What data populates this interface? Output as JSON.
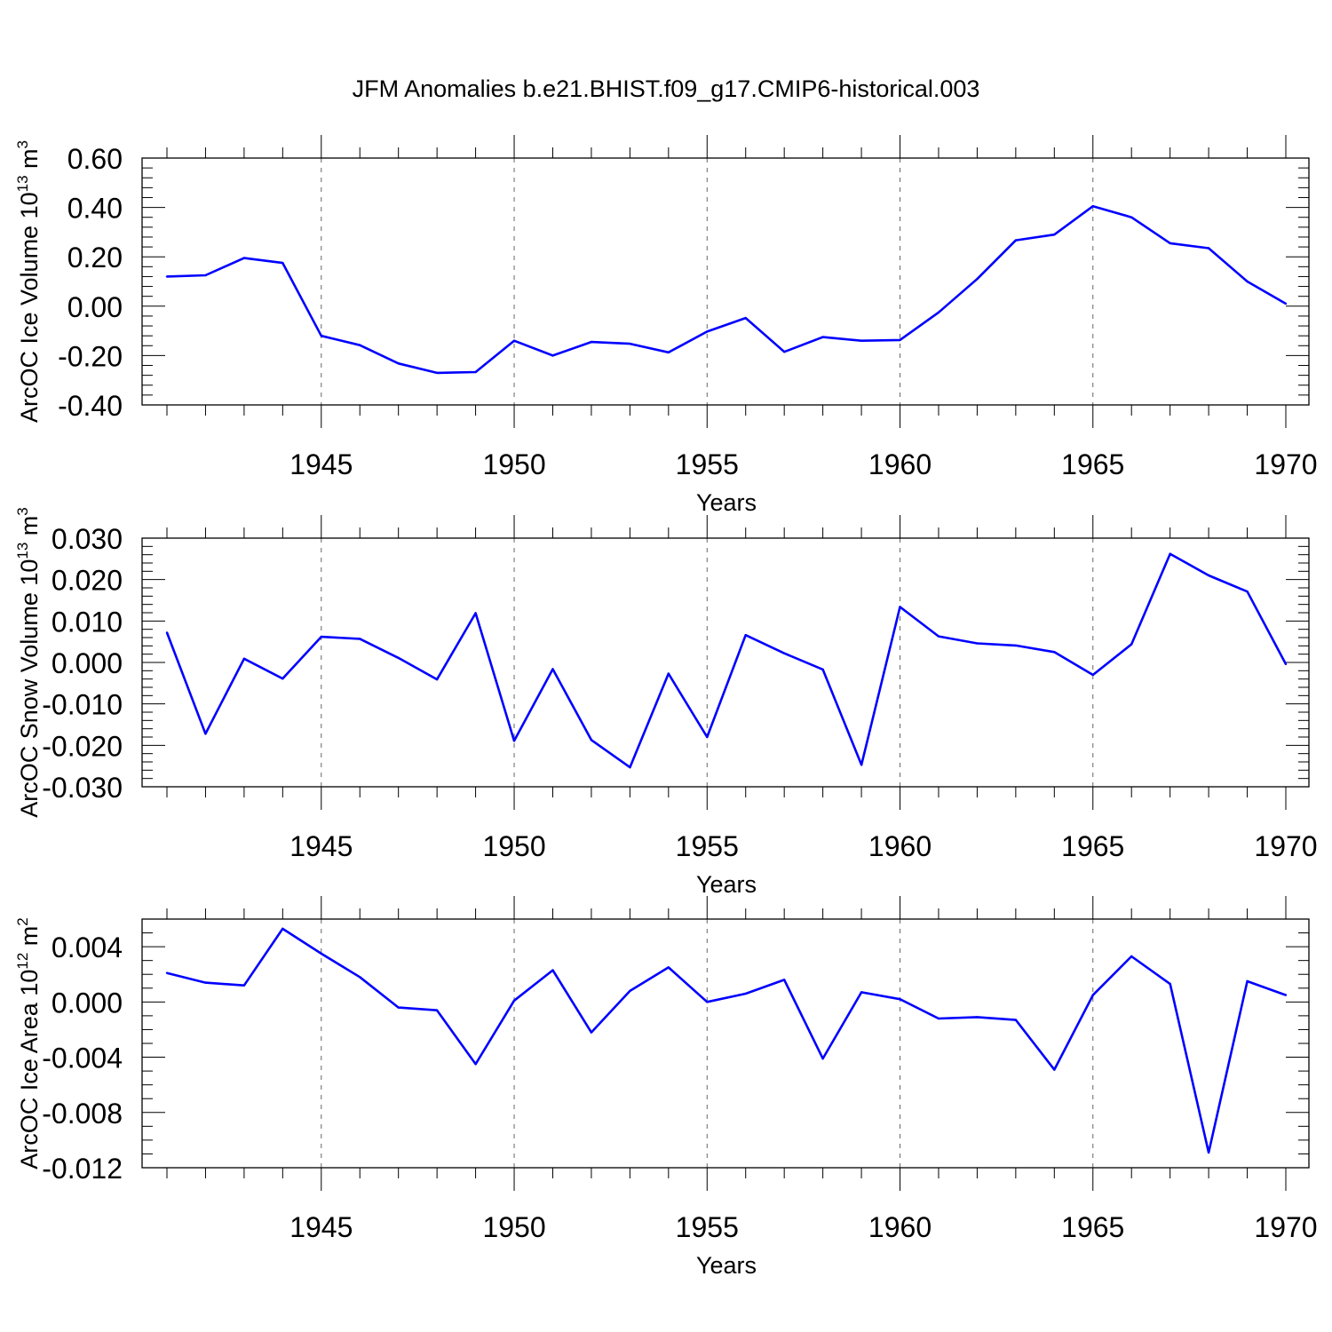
{
  "figure_title": "JFM Anomalies b.e21.BHIST.f09_g17.CMIP6-historical.003",
  "line_color": "#0000ff",
  "chart_data": [
    {
      "type": "line",
      "title": "JFM Anomalies b.e21.BHIST.f09_g17.CMIP6-historical.003",
      "xlabel": "Years",
      "ylabel_main": "ArcOC Ice Volume 10",
      "ylabel_exp": "13",
      "ylabel_unit": " m",
      "ylabel_unit_exp": "3",
      "xlim": [
        1941,
        1970
      ],
      "ylim": [
        -0.4,
        0.6
      ],
      "yticks": [
        -0.4,
        -0.2,
        0.0,
        0.2,
        0.4,
        0.6
      ],
      "ytick_labels": [
        "-0.40",
        "-0.20",
        "0.00",
        "0.20",
        "0.40",
        "0.60"
      ],
      "xticks": [
        1945,
        1950,
        1955,
        1960,
        1965,
        1970
      ],
      "xtick_labels": [
        "1945",
        "1950",
        "1955",
        "1960",
        "1965",
        "1970"
      ],
      "grid": "vertical dashed at major x ticks",
      "x": [
        1941,
        1942,
        1943,
        1944,
        1945,
        1946,
        1947,
        1948,
        1949,
        1950,
        1951,
        1952,
        1953,
        1954,
        1955,
        1956,
        1957,
        1958,
        1959,
        1960,
        1961,
        1962,
        1963,
        1964,
        1965,
        1966,
        1967,
        1968,
        1969,
        1970
      ],
      "series": [
        {
          "name": "ArcOC Ice Volume",
          "values": [
            0.12,
            0.125,
            0.195,
            0.175,
            -0.12,
            -0.158,
            -0.232,
            -0.27,
            -0.267,
            -0.14,
            -0.2,
            -0.145,
            -0.152,
            -0.187,
            -0.103,
            -0.048,
            -0.185,
            -0.125,
            -0.14,
            -0.137,
            -0.025,
            0.11,
            0.267,
            0.29,
            0.405,
            0.36,
            0.255,
            0.235,
            0.1,
            0.01
          ]
        }
      ]
    },
    {
      "type": "line",
      "xlabel": "Years",
      "ylabel_main": "ArcOC Snow Volume 10",
      "ylabel_exp": "13",
      "ylabel_unit": " m",
      "ylabel_unit_exp": "3",
      "xlim": [
        1941,
        1970
      ],
      "ylim": [
        -0.03,
        0.03
      ],
      "yticks": [
        -0.03,
        -0.02,
        -0.01,
        0.0,
        0.01,
        0.02,
        0.03
      ],
      "ytick_labels": [
        "-0.030",
        "-0.020",
        "-0.010",
        "0.000",
        "0.010",
        "0.020",
        "0.030"
      ],
      "xticks": [
        1945,
        1950,
        1955,
        1960,
        1965,
        1970
      ],
      "xtick_labels": [
        "1945",
        "1950",
        "1955",
        "1960",
        "1965",
        "1970"
      ],
      "grid": "vertical dashed at major x ticks",
      "x": [
        1941,
        1942,
        1943,
        1944,
        1945,
        1946,
        1947,
        1948,
        1949,
        1950,
        1951,
        1952,
        1953,
        1954,
        1955,
        1956,
        1957,
        1958,
        1959,
        1960,
        1961,
        1962,
        1963,
        1964,
        1965,
        1966,
        1967,
        1968,
        1969,
        1970
      ],
      "series": [
        {
          "name": "ArcOC Snow Volume",
          "values": [
            0.0072,
            -0.0172,
            0.0009,
            -0.0039,
            0.0062,
            0.0057,
            0.0011,
            -0.0041,
            0.0119,
            -0.0189,
            -0.0016,
            -0.0187,
            -0.0253,
            -0.0027,
            -0.018,
            0.0066,
            0.0022,
            -0.0017,
            -0.0247,
            0.0134,
            0.0063,
            0.0046,
            0.0041,
            0.0025,
            -0.003,
            0.0044,
            0.0262,
            0.021,
            0.0171,
            -0.0004
          ]
        }
      ]
    },
    {
      "type": "line",
      "xlabel": "Years",
      "ylabel_main": "ArcOC Ice Area 10",
      "ylabel_exp": "12",
      "ylabel_unit": " m",
      "ylabel_unit_exp": "2",
      "xlim": [
        1941,
        1970
      ],
      "ylim": [
        -0.012,
        0.006
      ],
      "yticks": [
        -0.012,
        -0.008,
        -0.004,
        0.0,
        0.004
      ],
      "ytick_labels": [
        "-0.012",
        "-0.008",
        "-0.004",
        "0.000",
        "0.004"
      ],
      "xticks": [
        1945,
        1950,
        1955,
        1960,
        1965,
        1970
      ],
      "xtick_labels": [
        "1945",
        "1950",
        "1955",
        "1960",
        "1965",
        "1970"
      ],
      "grid": "vertical dashed at major x ticks",
      "x": [
        1941,
        1942,
        1943,
        1944,
        1945,
        1946,
        1947,
        1948,
        1949,
        1950,
        1951,
        1952,
        1953,
        1954,
        1955,
        1956,
        1957,
        1958,
        1959,
        1960,
        1961,
        1962,
        1963,
        1964,
        1965,
        1966,
        1967,
        1968,
        1969,
        1970
      ],
      "series": [
        {
          "name": "ArcOC Ice Area",
          "values": [
            0.0021,
            0.0014,
            0.0012,
            0.0053,
            0.0035,
            0.0018,
            -0.0004,
            -0.0006,
            -0.0045,
            0.0001,
            0.0023,
            -0.0022,
            0.0008,
            0.0025,
            0.0,
            0.0006,
            0.0016,
            -0.0041,
            0.0007,
            0.0002,
            -0.0012,
            -0.0011,
            -0.0013,
            -0.0049,
            0.0005,
            0.0033,
            0.0013,
            -0.0109,
            0.0015,
            0.0005
          ]
        }
      ]
    }
  ]
}
